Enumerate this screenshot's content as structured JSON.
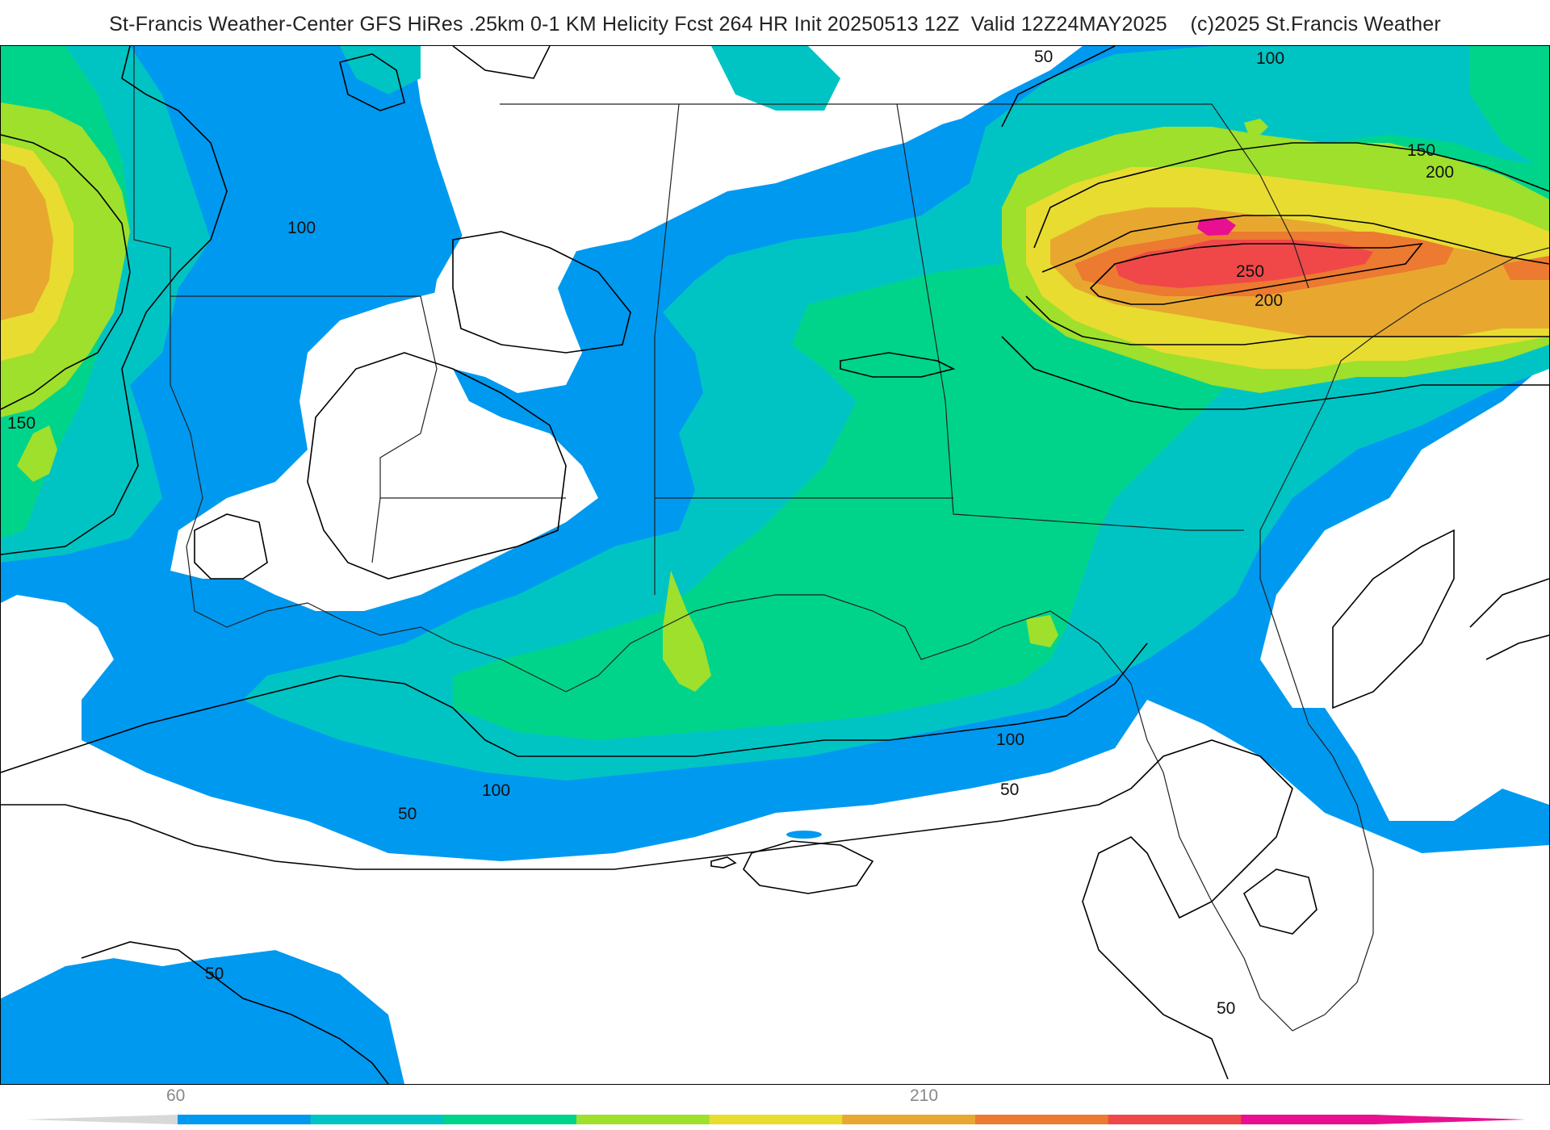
{
  "title": "St-Francis Weather-Center GFS HiRes .25km 0-1 KM Helicity Fcst 264 HR Init 20250513 12Z  Valid 12Z24MAY2025    (c)2025 St.Francis Weather",
  "contour_labels": [
    "50",
    "100",
    "150",
    "200",
    "250"
  ],
  "legend": {
    "tick_labels": [
      "60",
      "210"
    ],
    "colors": [
      "#0099f0",
      "#00c4c4",
      "#00d48a",
      "#9ee02c",
      "#e8dc30",
      "#e8a830",
      "#ec7a30",
      "#f04848",
      "#e81090"
    ]
  }
}
